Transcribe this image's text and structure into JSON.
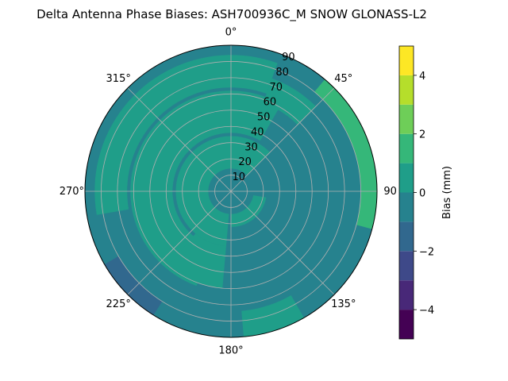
{
  "chart_data": {
    "type": "polar-contour",
    "title": "Delta Antenna Phase Biases: ASH700936C_M    SNOW GLONASS-L2",
    "azimuth_tick_labels": [
      {
        "az": 0,
        "label": "0°"
      },
      {
        "az": 45,
        "label": "45°"
      },
      {
        "az": 90,
        "label": "90"
      },
      {
        "az": 135,
        "label": "135°"
      },
      {
        "az": 180,
        "label": "180°"
      },
      {
        "az": 225,
        "label": "225°"
      },
      {
        "az": 270,
        "label": "270°"
      },
      {
        "az": 315,
        "label": "315°"
      }
    ],
    "radial_ticks": [
      10,
      20,
      30,
      40,
      50,
      60,
      70,
      80,
      90
    ],
    "rlim": [
      0,
      90
    ],
    "grid": true,
    "colorbar": {
      "label": "Bias (mm)",
      "ticks": [
        -4,
        -2,
        0,
        2,
        4
      ],
      "levels": [
        -5,
        -4,
        -3,
        -2,
        -1,
        0,
        1,
        2,
        3,
        4,
        5
      ],
      "colors": [
        "#440154",
        "#482878",
        "#3e4989",
        "#31688e",
        "#26828e",
        "#1f9e89",
        "#35b779",
        "#6ece58",
        "#b5de2b",
        "#fde725"
      ]
    },
    "regions": [
      {
        "name": "background",
        "bias": -0.5
      },
      {
        "name": "outer-ring-north",
        "bias": 0.5,
        "r": [
          64,
          84
        ],
        "az": [
          -100,
          20
        ]
      },
      {
        "name": "ring-northeast-upper",
        "bias": 0.5,
        "r": [
          58,
          74
        ],
        "az": [
          20,
          45
        ]
      },
      {
        "name": "mid-ring-west",
        "bias": 0.5,
        "r": [
          36,
          62
        ],
        "az": [
          -160,
          30
        ]
      },
      {
        "name": "mid-ring-southwest",
        "bias": 0.5,
        "r": [
          34,
          60
        ],
        "az": [
          -175,
          -140
        ]
      },
      {
        "name": "inner-ring",
        "bias": 0.5,
        "r": [
          14,
          34
        ],
        "az": [
          -175,
          45
        ]
      },
      {
        "name": "inner-ring-south",
        "bias": 0.5,
        "r": [
          14,
          22
        ],
        "az": [
          100,
          180
        ]
      },
      {
        "name": "east-edge-band",
        "bias": 1.5,
        "r": [
          80,
          90
        ],
        "az": [
          40,
          105
        ]
      },
      {
        "name": "south-edge-patch",
        "bias": 0.5,
        "r": [
          74,
          90
        ],
        "az": [
          150,
          175
        ]
      },
      {
        "name": "southwest-edge-band",
        "bias": -1.5,
        "r": [
          80,
          90
        ],
        "az": [
          212,
          240
        ]
      },
      {
        "name": "center",
        "bias": -0.5,
        "r": [
          0,
          10
        ],
        "az": [
          0,
          360
        ]
      }
    ]
  }
}
